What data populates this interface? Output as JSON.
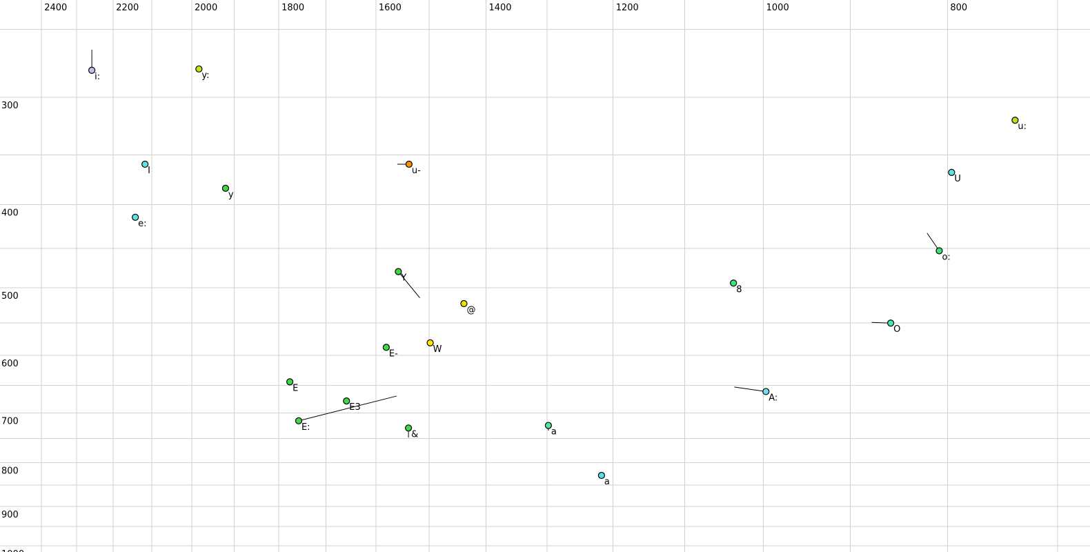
{
  "chart_data": {
    "type": "scatter",
    "title": "",
    "xlabel": "",
    "ylabel": "",
    "x_axis": {
      "position": "top",
      "scale": "log",
      "reversed": true,
      "range": [
        2524,
        673
      ],
      "gridlines": [
        2400,
        2300,
        2200,
        2100,
        2000,
        1900,
        1800,
        1700,
        1600,
        1500,
        1400,
        1300,
        1200,
        1100,
        1000,
        900,
        800,
        700
      ],
      "tick_labels": [
        "2400",
        "2200",
        "2000",
        "1800",
        "1600",
        "1400",
        "1200",
        "1000",
        "800"
      ],
      "tick_values": [
        2400,
        2200,
        2000,
        1800,
        1600,
        1400,
        1200,
        1000,
        800
      ]
    },
    "y_axis": {
      "position": "left",
      "scale": "log",
      "range": [
        231,
        1017
      ],
      "gridlines": [
        250,
        300,
        350,
        400,
        450,
        500,
        550,
        600,
        650,
        700,
        750,
        800,
        850,
        900,
        950,
        1000
      ],
      "tick_labels": [
        "300",
        "400",
        "500",
        "600",
        "700",
        "800",
        "900",
        "1000"
      ],
      "tick_values": [
        300,
        400,
        500,
        600,
        700,
        800,
        900,
        1000
      ]
    },
    "grid": true,
    "colors": {
      "background": "#ffffff",
      "gridline": "#d0d0d0",
      "point_outline": "#000000",
      "tail_line": "#000000",
      "default_label": "#000000"
    },
    "points": [
      {
        "label": "i:",
        "f2": 2258,
        "f1": 279,
        "color": "#c8bcec",
        "tail": {
          "f2": 2258,
          "f1": 264
        }
      },
      {
        "label": "y:",
        "f2": 1983,
        "f1": 278,
        "color": "#c8e020"
      },
      {
        "label": "I",
        "f2": 2117,
        "f1": 359,
        "color": "#5ce4e4"
      },
      {
        "label": "y",
        "f2": 1920,
        "f1": 383,
        "color": "#44d444"
      },
      {
        "label": "e:",
        "f2": 2142,
        "f1": 414,
        "color": "#5ce4e4"
      },
      {
        "label": "u-",
        "f2": 1537,
        "f1": 359,
        "color": "#ff9000",
        "tail": {
          "f2": 1559,
          "f1": 359
        }
      },
      {
        "label": "Y",
        "f2": 1557,
        "f1": 479,
        "color": "#44d444",
        "tail": {
          "f2": 1517,
          "f1": 514
        }
      },
      {
        "label": "u:",
        "f2": 737,
        "f1": 319,
        "color": "#b8e020"
      },
      {
        "label": "U",
        "f2": 796,
        "f1": 367,
        "color": "#5ce4e4"
      },
      {
        "label": "o:",
        "f2": 808,
        "f1": 453,
        "color": "#3ce478",
        "tail": {
          "f2": 820,
          "f1": 432
        }
      },
      {
        "label": "8",
        "f2": 1037,
        "f1": 494,
        "color": "#3ce478"
      },
      {
        "label": "@",
        "f2": 1438,
        "f1": 522,
        "color": "#e4e400"
      },
      {
        "label": "O",
        "f2": 857,
        "f1": 550,
        "color": "#44e8a8",
        "tail": {
          "f2": 877,
          "f1": 549
        }
      },
      {
        "label": "W",
        "f2": 1498,
        "f1": 580,
        "color": "#ffe800"
      },
      {
        "label": "E-",
        "f2": 1580,
        "f1": 587,
        "color": "#40d848"
      },
      {
        "label": "E",
        "f2": 1776,
        "f1": 644,
        "color": "#40d848"
      },
      {
        "label": "E3",
        "f2": 1658,
        "f1": 678,
        "color": "#40d848"
      },
      {
        "label": "E:",
        "f2": 1757,
        "f1": 715,
        "color": "#40d848",
        "tail": {
          "f2": 1560,
          "f1": 669
        }
      },
      {
        "label": "&",
        "f2": 1538,
        "f1": 729,
        "color": "#40d848",
        "tail": {
          "f2": 1538,
          "f1": 748
        }
      },
      {
        "label": "a",
        "f2": 1298,
        "f1": 724,
        "color": "#58e0a0",
        "label_color": "#909090",
        "tail": {
          "f2": 1298,
          "f1": 734
        }
      },
      {
        "label": "a",
        "f2": 1217,
        "f1": 828,
        "color": "#58dce8"
      },
      {
        "label": "A:",
        "f2": 997,
        "f1": 661,
        "color": "#78dcf0",
        "tail": {
          "f2": 1036,
          "f1": 653
        }
      }
    ]
  }
}
